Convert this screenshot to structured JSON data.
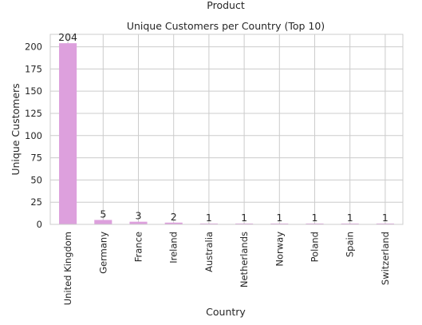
{
  "figure": {
    "suptitle": "Product"
  },
  "colors": {
    "bar": "#dda0dd",
    "grid": "#cccccc",
    "text": "#262626"
  },
  "chart_data": {
    "type": "bar",
    "title": "Unique Customers per Country (Top 10)",
    "xlabel": "Country",
    "ylabel": "Unique Customers",
    "categories": [
      "United Kingdom",
      "Germany",
      "France",
      "Ireland",
      "Australia",
      "Netherlands",
      "Norway",
      "Poland",
      "Spain",
      "Switzerland"
    ],
    "values": [
      204,
      5,
      3,
      2,
      1,
      1,
      1,
      1,
      1,
      1
    ],
    "ylim": [
      0,
      214
    ],
    "yticks": [
      0,
      25,
      50,
      75,
      100,
      125,
      150,
      175,
      200
    ],
    "grid": true,
    "legend": "none"
  }
}
